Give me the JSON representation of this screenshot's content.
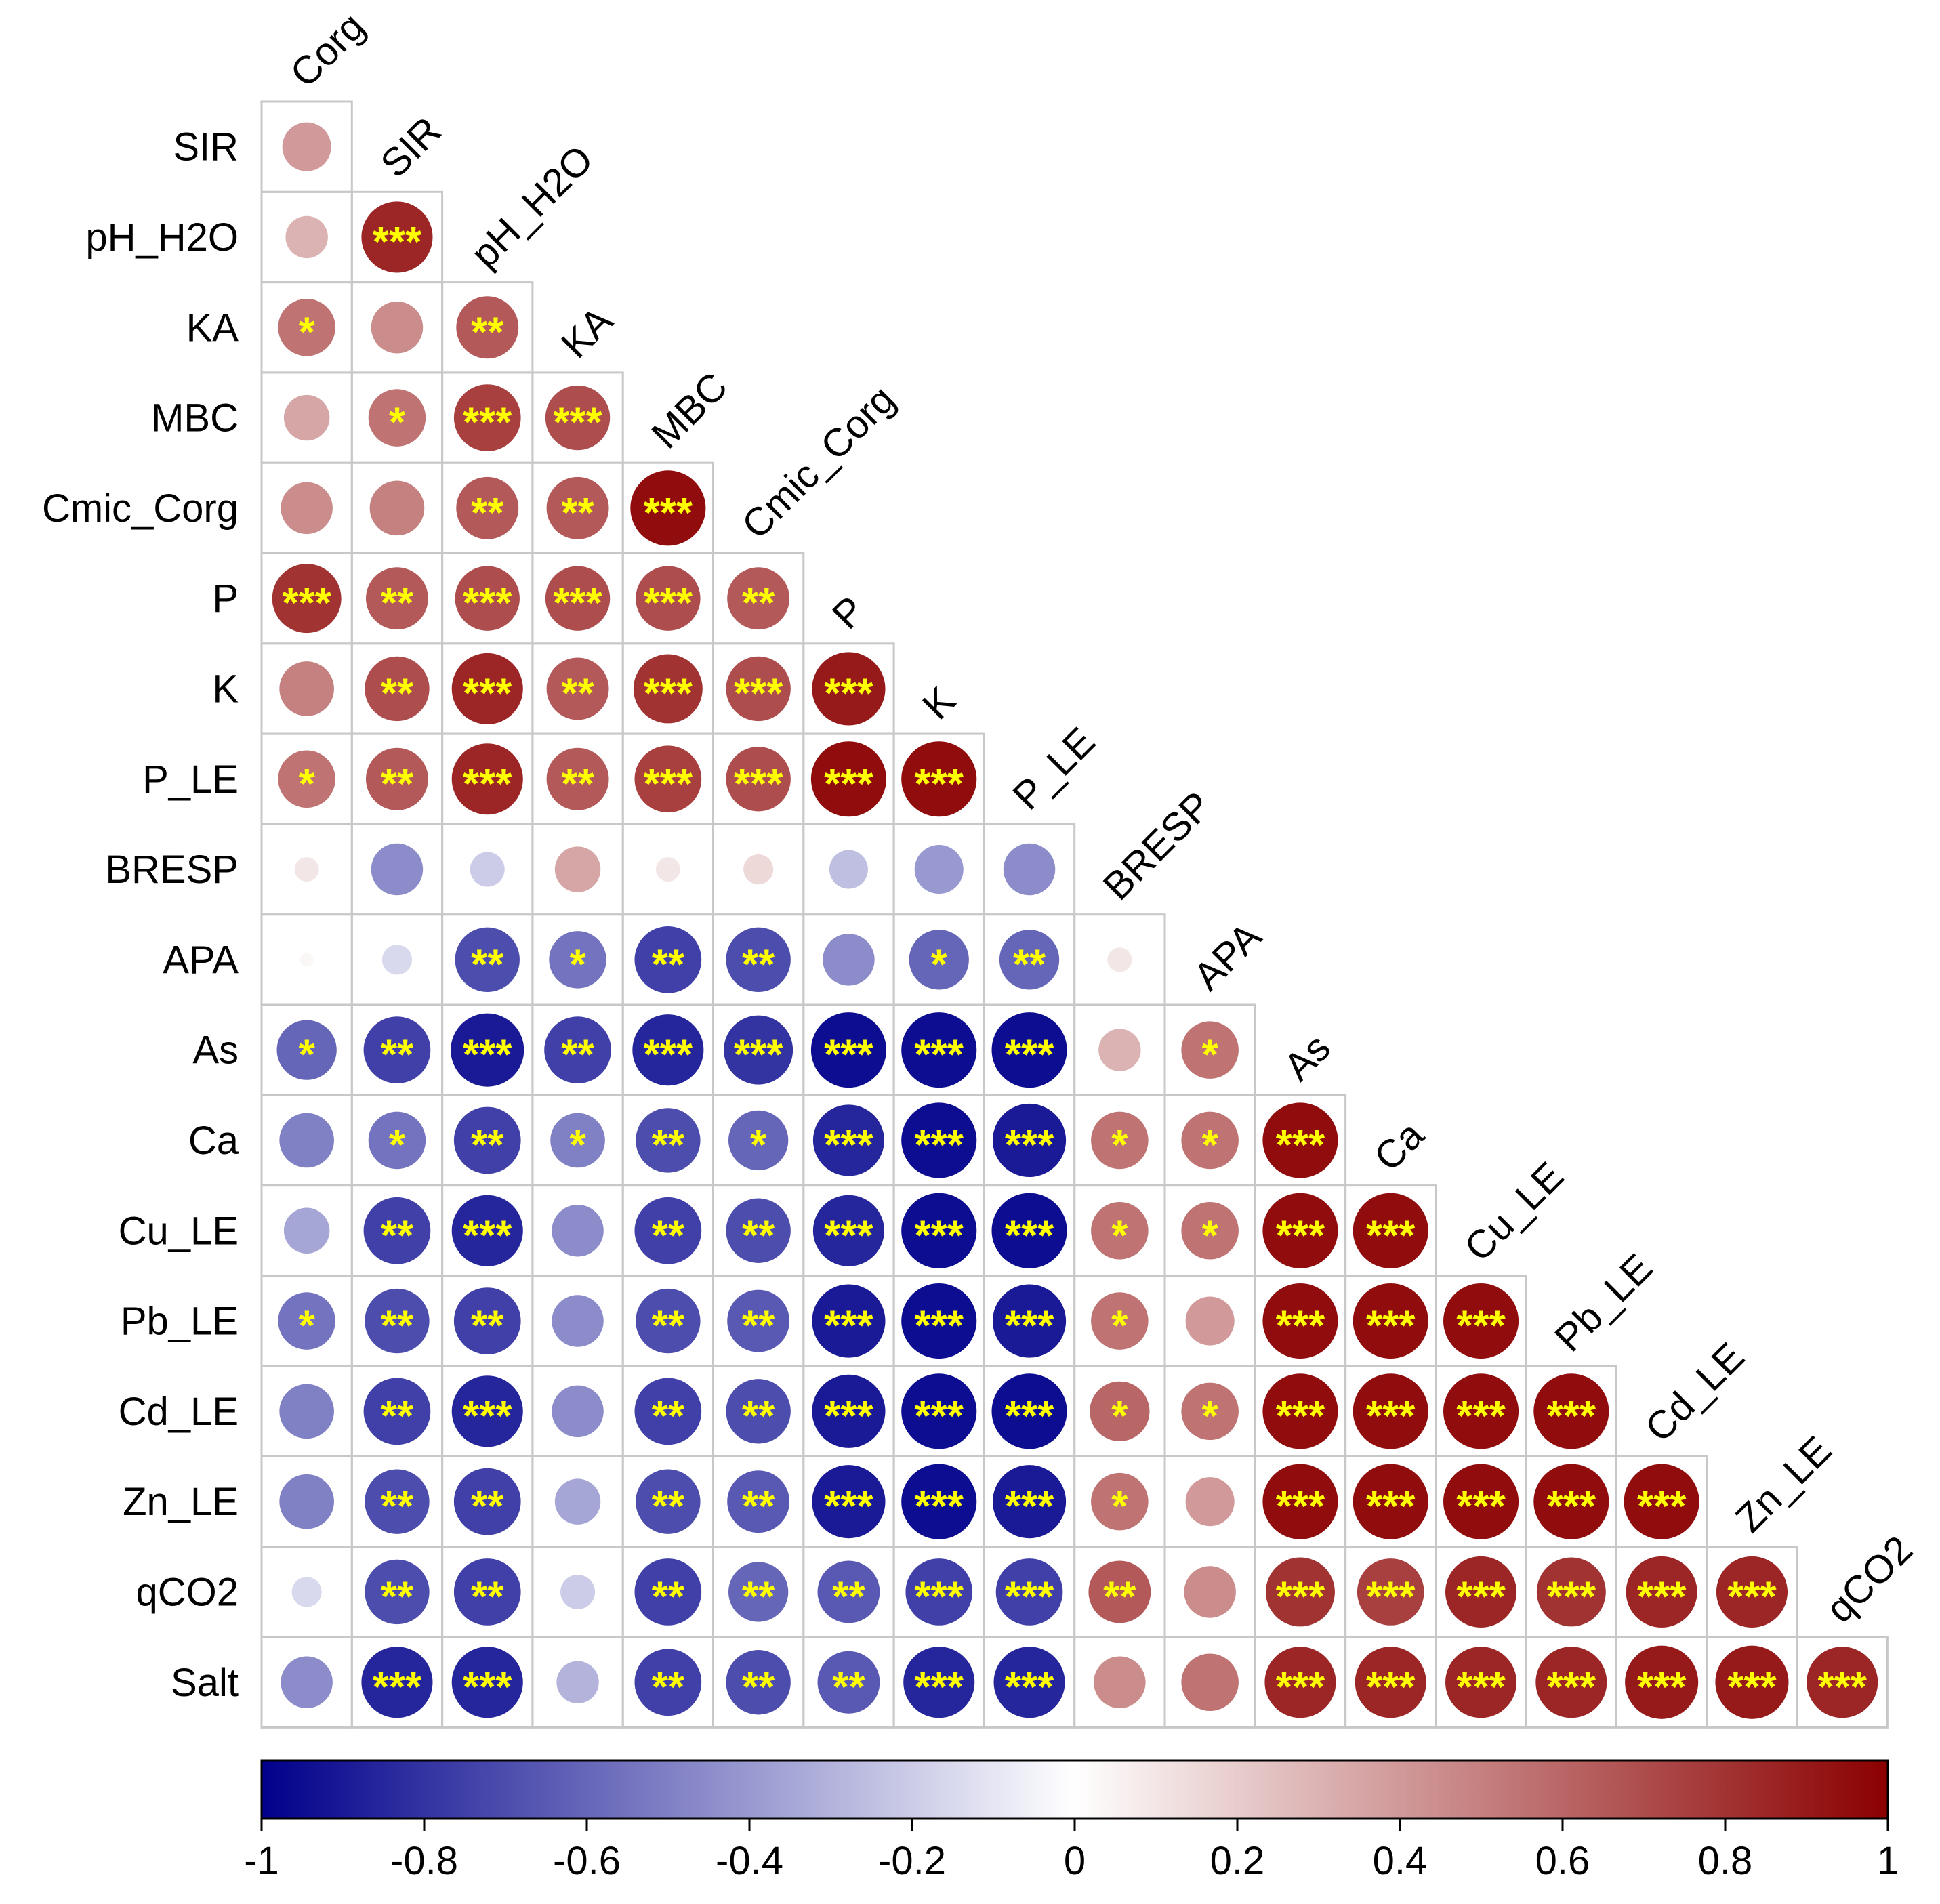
{
  "chart_data": {
    "type": "heatmap",
    "subtype": "lower-triangular correlation matrix (circles)",
    "title": "",
    "variables": [
      "Corg",
      "SIR",
      "pH_H2O",
      "KA",
      "MBC",
      "Cmic_Corg",
      "P",
      "K",
      "P_LE",
      "BRESP",
      "APA",
      "As",
      "Ca",
      "Cu_LE",
      "Pb_LE",
      "Cd_LE",
      "Zn_LE",
      "qCO2",
      "Salt"
    ],
    "row_labels": [
      "SIR",
      "pH_H2O",
      "KA",
      "MBC",
      "Cmic_Corg",
      "P",
      "K",
      "P_LE",
      "BRESP",
      "APA",
      "As",
      "Ca",
      "Cu_LE",
      "Pb_LE",
      "Cd_LE",
      "Zn_LE",
      "qCO2",
      "Salt"
    ],
    "column_labels": [
      "Corg",
      "SIR",
      "pH_H2O",
      "KA",
      "MBC",
      "Cmic_Corg",
      "P",
      "K",
      "P_LE",
      "BRESP",
      "APA",
      "As",
      "Ca",
      "Cu_LE",
      "Pb_LE",
      "Cd_LE",
      "Zn_LE",
      "qCO2"
    ],
    "correlations": [
      [
        0.4
      ],
      [
        0.3,
        0.85
      ],
      [
        0.55,
        0.45,
        0.65
      ],
      [
        0.35,
        0.55,
        0.75,
        0.7
      ],
      [
        0.45,
        0.5,
        0.65,
        0.65,
        0.95
      ],
      [
        0.8,
        0.65,
        0.7,
        0.7,
        0.7,
        0.65
      ],
      [
        0.5,
        0.7,
        0.85,
        0.65,
        0.8,
        0.7,
        0.9
      ],
      [
        0.55,
        0.65,
        0.85,
        0.65,
        0.75,
        0.7,
        0.95,
        0.95
      ],
      [
        0.1,
        -0.45,
        -0.2,
        0.35,
        0.1,
        0.15,
        -0.25,
        -0.4,
        -0.45
      ],
      [
        0.03,
        -0.15,
        -0.7,
        -0.55,
        -0.75,
        -0.7,
        -0.45,
        -0.6,
        -0.6,
        0.1
      ],
      [
        -0.6,
        -0.75,
        -0.9,
        -0.75,
        -0.85,
        -0.8,
        -0.95,
        -0.95,
        -0.95,
        0.3,
        0.55
      ],
      [
        -0.5,
        -0.55,
        -0.75,
        -0.5,
        -0.7,
        -0.6,
        -0.85,
        -0.95,
        -0.9,
        0.55,
        0.55,
        0.95
      ],
      [
        -0.35,
        -0.75,
        -0.85,
        -0.45,
        -0.75,
        -0.7,
        -0.85,
        -0.95,
        -0.95,
        0.55,
        0.55,
        0.95,
        0.95
      ],
      [
        -0.55,
        -0.7,
        -0.75,
        -0.45,
        -0.7,
        -0.65,
        -0.9,
        -0.95,
        -0.9,
        0.55,
        0.4,
        0.95,
        0.95,
        0.95
      ],
      [
        -0.5,
        -0.75,
        -0.85,
        -0.45,
        -0.75,
        -0.7,
        -0.9,
        -0.95,
        -0.95,
        0.6,
        0.55,
        0.95,
        0.95,
        0.95,
        0.95
      ],
      [
        -0.5,
        -0.7,
        -0.75,
        -0.35,
        -0.7,
        -0.65,
        -0.9,
        -0.95,
        -0.9,
        0.55,
        0.4,
        0.95,
        0.95,
        0.95,
        0.95,
        0.95
      ],
      [
        -0.15,
        -0.7,
        -0.75,
        -0.2,
        -0.75,
        -0.6,
        -0.65,
        -0.75,
        -0.75,
        0.65,
        0.45,
        0.8,
        0.75,
        0.85,
        0.8,
        0.85,
        0.85
      ],
      [
        -0.45,
        -0.85,
        -0.85,
        -0.3,
        -0.75,
        -0.7,
        -0.65,
        -0.85,
        -0.85,
        0.45,
        0.55,
        0.85,
        0.85,
        0.85,
        0.85,
        0.9,
        0.9,
        0.85
      ]
    ],
    "significance": [
      [
        ""
      ],
      [
        "",
        "***"
      ],
      [
        "*",
        "",
        "**"
      ],
      [
        "",
        "*",
        "***",
        "***"
      ],
      [
        "",
        "",
        "**",
        "**",
        "***"
      ],
      [
        "***",
        "**",
        "***",
        "***",
        "***",
        "**"
      ],
      [
        "",
        "**",
        "***",
        "**",
        "***",
        "***",
        "***"
      ],
      [
        "*",
        "**",
        "***",
        "**",
        "***",
        "***",
        "***",
        "***"
      ],
      [
        "",
        "",
        "",
        "",
        "",
        "",
        "",
        "",
        ""
      ],
      [
        "",
        "",
        "**",
        "*",
        "**",
        "**",
        "",
        "*",
        "**",
        ""
      ],
      [
        "*",
        "**",
        "***",
        "**",
        "***",
        "***",
        "***",
        "***",
        "***",
        "",
        "*"
      ],
      [
        "",
        "*",
        "**",
        "*",
        "**",
        "*",
        "***",
        "***",
        "***",
        "*",
        "*",
        "***"
      ],
      [
        "",
        "**",
        "***",
        "",
        "**",
        "**",
        "***",
        "***",
        "***",
        "*",
        "*",
        "***",
        "***"
      ],
      [
        "*",
        "**",
        "**",
        "",
        "**",
        "**",
        "***",
        "***",
        "***",
        "*",
        "",
        "***",
        "***",
        "***"
      ],
      [
        "",
        "**",
        "***",
        "",
        "**",
        "**",
        "***",
        "***",
        "***",
        "*",
        "*",
        "***",
        "***",
        "***",
        "***"
      ],
      [
        "",
        "**",
        "**",
        "",
        "**",
        "**",
        "***",
        "***",
        "***",
        "*",
        "",
        "***",
        "***",
        "***",
        "***",
        "***"
      ],
      [
        "",
        "**",
        "**",
        "",
        "**",
        "**",
        "**",
        "***",
        "***",
        "**",
        "",
        "***",
        "***",
        "***",
        "***",
        "***",
        "***"
      ],
      [
        "",
        "***",
        "***",
        "",
        "**",
        "**",
        "**",
        "***",
        "***",
        "",
        "",
        "***",
        "***",
        "***",
        "***",
        "***",
        "***",
        "***"
      ]
    ],
    "color_scale": {
      "min": -1,
      "max": 1,
      "ticks": [
        "-1",
        "-0.8",
        "-0.6",
        "-0.4",
        "-0.2",
        "0",
        "0.2",
        "0.4",
        "0.6",
        "0.8",
        "1"
      ],
      "low_color": "#00008B",
      "mid_color": "#FFFFFF",
      "high_color": "#8B0000"
    },
    "significance_color": "#FFFF00",
    "grid_color": "#C8C8C8"
  }
}
